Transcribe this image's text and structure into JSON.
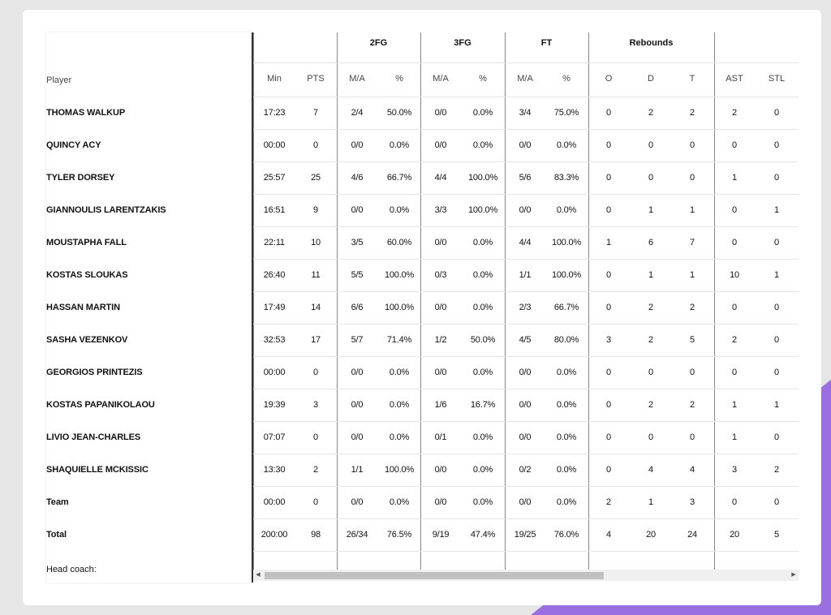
{
  "header": {
    "player_label": "Player",
    "groups": [
      {
        "key": "2fg",
        "label": "2FG"
      },
      {
        "key": "3fg",
        "label": "3FG"
      },
      {
        "key": "ft",
        "label": "FT"
      },
      {
        "key": "reb",
        "label": "Rebounds"
      }
    ],
    "columns": [
      "Min",
      "PTS",
      "M/A",
      "%",
      "M/A",
      "%",
      "M/A",
      "%",
      "O",
      "D",
      "T",
      "AST",
      "STL"
    ]
  },
  "rows": [
    {
      "name": "THOMAS WALKUP",
      "stats": [
        "17:23",
        "7",
        "2/4",
        "50.0%",
        "0/0",
        "0.0%",
        "3/4",
        "75.0%",
        "0",
        "2",
        "2",
        "2",
        "0"
      ]
    },
    {
      "name": "QUINCY ACY",
      "stats": [
        "00:00",
        "0",
        "0/0",
        "0.0%",
        "0/0",
        "0.0%",
        "0/0",
        "0.0%",
        "0",
        "0",
        "0",
        "0",
        "0"
      ]
    },
    {
      "name": "TYLER DORSEY",
      "stats": [
        "25:57",
        "25",
        "4/6",
        "66.7%",
        "4/4",
        "100.0%",
        "5/6",
        "83.3%",
        "0",
        "0",
        "0",
        "1",
        "0"
      ]
    },
    {
      "name": "GIANNOULIS LARENTZAKIS",
      "stats": [
        "16:51",
        "9",
        "0/0",
        "0.0%",
        "3/3",
        "100.0%",
        "0/0",
        "0.0%",
        "0",
        "1",
        "1",
        "0",
        "1"
      ]
    },
    {
      "name": "MOUSTAPHA FALL",
      "stats": [
        "22:11",
        "10",
        "3/5",
        "60.0%",
        "0/0",
        "0.0%",
        "4/4",
        "100.0%",
        "1",
        "6",
        "7",
        "0",
        "0"
      ]
    },
    {
      "name": "KOSTAS SLOUKAS",
      "stats": [
        "26:40",
        "11",
        "5/5",
        "100.0%",
        "0/3",
        "0.0%",
        "1/1",
        "100.0%",
        "0",
        "1",
        "1",
        "10",
        "1"
      ]
    },
    {
      "name": "HASSAN MARTIN",
      "stats": [
        "17:49",
        "14",
        "6/6",
        "100.0%",
        "0/0",
        "0.0%",
        "2/3",
        "66.7%",
        "0",
        "2",
        "2",
        "0",
        "0"
      ]
    },
    {
      "name": "SASHA VEZENKOV",
      "stats": [
        "32:53",
        "17",
        "5/7",
        "71.4%",
        "1/2",
        "50.0%",
        "4/5",
        "80.0%",
        "3",
        "2",
        "5",
        "2",
        "0"
      ]
    },
    {
      "name": "GEORGIOS PRINTEZIS",
      "stats": [
        "00:00",
        "0",
        "0/0",
        "0.0%",
        "0/0",
        "0.0%",
        "0/0",
        "0.0%",
        "0",
        "0",
        "0",
        "0",
        "0"
      ]
    },
    {
      "name": "KOSTAS PAPANIKOLAOU",
      "stats": [
        "19:39",
        "3",
        "0/0",
        "0.0%",
        "1/6",
        "16.7%",
        "0/0",
        "0.0%",
        "0",
        "2",
        "2",
        "1",
        "1"
      ]
    },
    {
      "name": "LIVIO JEAN-CHARLES",
      "stats": [
        "07:07",
        "0",
        "0/0",
        "0.0%",
        "0/1",
        "0.0%",
        "0/0",
        "0.0%",
        "0",
        "0",
        "0",
        "1",
        "0"
      ]
    },
    {
      "name": "SHAQUIELLE MCKISSIC",
      "stats": [
        "13:30",
        "2",
        "1/1",
        "100.0%",
        "0/0",
        "0.0%",
        "0/2",
        "0.0%",
        "0",
        "4",
        "4",
        "3",
        "2"
      ]
    },
    {
      "name": "Team",
      "stats": [
        "00:00",
        "0",
        "0/0",
        "0.0%",
        "0/0",
        "0.0%",
        "0/0",
        "0.0%",
        "2",
        "1",
        "3",
        "0",
        "0"
      ]
    },
    {
      "name": "Total",
      "stats": [
        "200:00",
        "98",
        "26/34",
        "76.5%",
        "9/19",
        "47.4%",
        "19/25",
        "76.0%",
        "4",
        "20",
        "24",
        "20",
        "5"
      ]
    }
  ],
  "footer": {
    "head_coach_label": "Head coach:"
  },
  "scrollbar": {
    "left_arrow": "◀",
    "right_arrow": "▶"
  }
}
